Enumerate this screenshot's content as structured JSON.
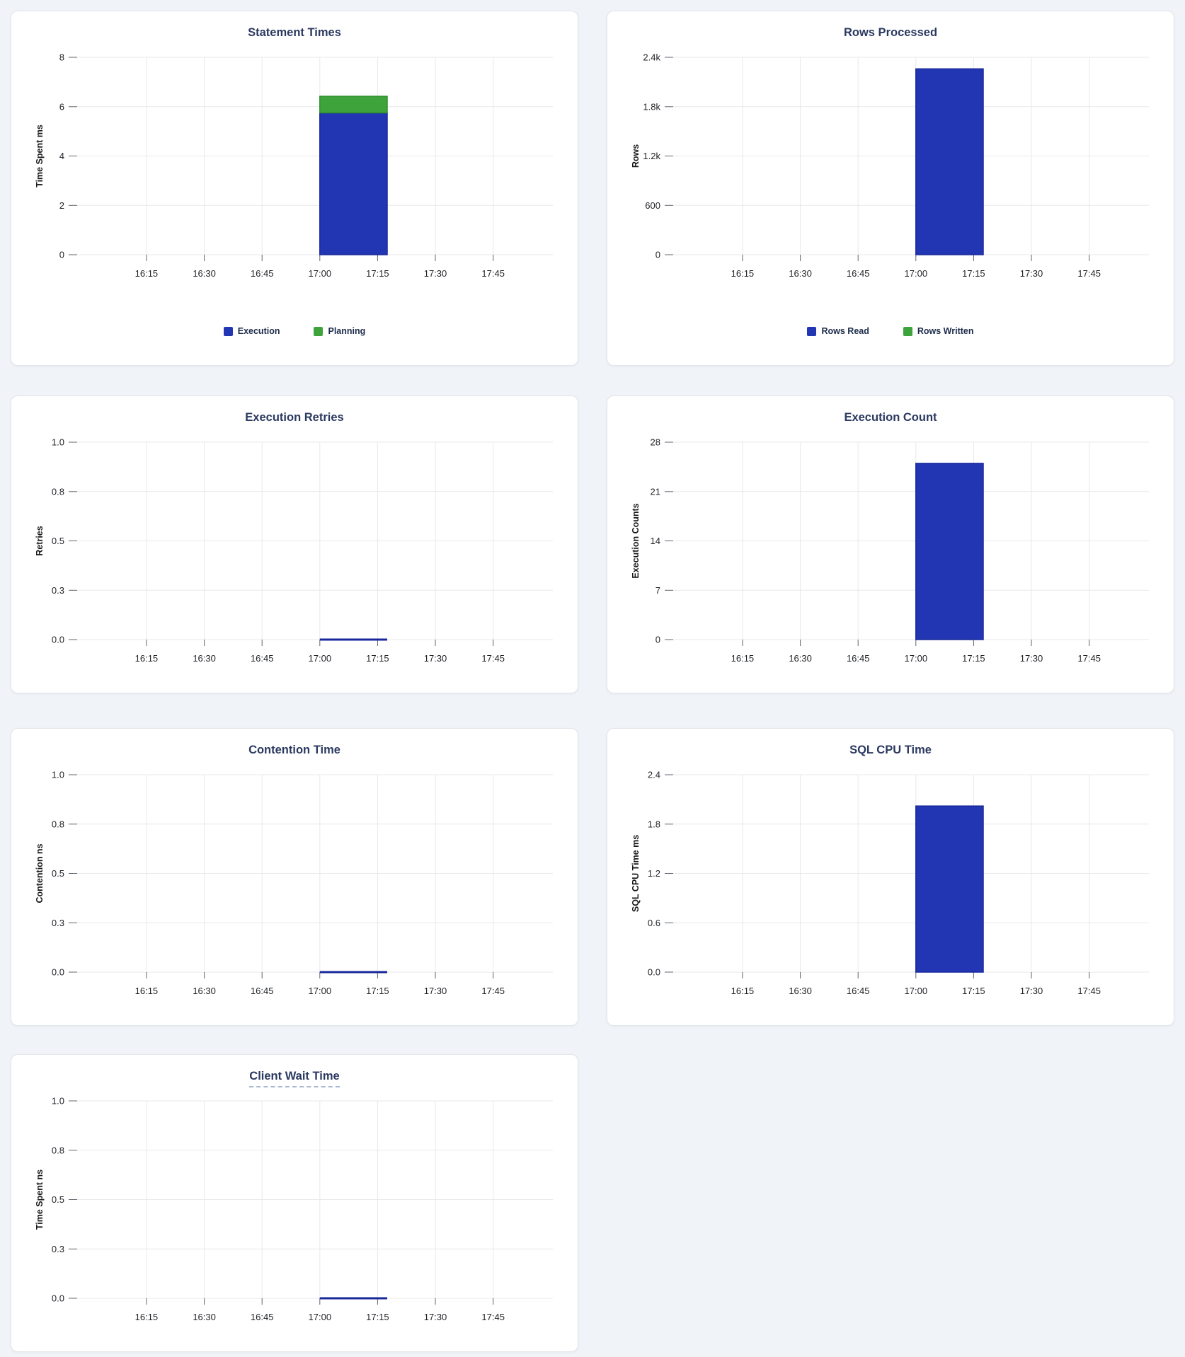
{
  "page": {
    "background": "#f0f4f8",
    "card_background": "#ffffff",
    "card_border": "#e2e5e9"
  },
  "palette": {
    "bar_blue": "#2236b4",
    "bar_blue_border": "#18289b",
    "bar_green": "#3fa33c",
    "bar_green_border": "#2e8f2c",
    "title_color": "#2b3960",
    "grid_color": "#e8e9ec",
    "tick_color": "#5f656d",
    "label_color": "#1f2126",
    "legend_text_color": "#1c2b4a"
  },
  "x_axis": {
    "tick_labels": [
      "16:15",
      "16:30",
      "16:45",
      "17:00",
      "17:15",
      "17:30",
      "17:45"
    ],
    "tick_minutes": [
      15,
      30,
      45,
      60,
      75,
      90,
      105
    ],
    "domain_minutes": [
      -3,
      120.5
    ]
  },
  "bar_window": {
    "start_minute": 60,
    "end_minute": 77.5,
    "from_label": "17:00",
    "to_label": "~17:18"
  },
  "chart_data": [
    {
      "id": "statement-times",
      "type": "bar",
      "title": "Statement Times",
      "ylabel": "Time Spent ms",
      "ylim": [
        0,
        8
      ],
      "yticks": [
        0,
        2,
        4,
        6,
        8
      ],
      "ytick_labels": [
        "0",
        "2",
        "4",
        "6",
        "8"
      ],
      "grid": true,
      "legend_position": "bottom-center",
      "series": [
        {
          "name": "Execution",
          "color": "bar_blue",
          "border": "bar_blue_border",
          "stack_from": 0,
          "stack_to": 5.75,
          "value": 5.75
        },
        {
          "name": "Planning",
          "color": "bar_green",
          "border": "bar_green_border",
          "stack_from": 5.75,
          "stack_to": 6.42,
          "value": 0.67
        }
      ],
      "legend": [
        "Execution",
        "Planning"
      ],
      "title_underlined": false
    },
    {
      "id": "rows-processed",
      "type": "bar",
      "title": "Rows Processed",
      "ylabel": "Rows",
      "ylim": [
        0,
        2400
      ],
      "yticks": [
        0,
        600,
        1200,
        1800,
        2400
      ],
      "ytick_labels": [
        "0",
        "600",
        "1.2k",
        "1.8k",
        "2.4k"
      ],
      "grid": true,
      "legend_position": "bottom-center",
      "series": [
        {
          "name": "Rows Read",
          "color": "bar_blue",
          "border": "bar_blue_border",
          "stack_from": 0,
          "stack_to": 2260,
          "value": 2260
        },
        {
          "name": "Rows Written",
          "color": "bar_green",
          "border": "bar_green_border",
          "stack_from": 2260,
          "stack_to": 2260,
          "value": 0
        }
      ],
      "legend": [
        "Rows Read",
        "Rows Written"
      ],
      "title_underlined": false
    },
    {
      "id": "execution-retries",
      "type": "line",
      "title": "Execution Retries",
      "ylabel": "Retries",
      "ylim": [
        0,
        1
      ],
      "yticks": [
        0,
        0.25,
        0.5,
        0.75,
        1
      ],
      "ytick_labels": [
        "0.0",
        "0.3",
        "0.5",
        "0.8",
        "1.0"
      ],
      "grid": true,
      "line_value": 0,
      "series": [
        {
          "name": "Retries",
          "color": "bar_blue_border",
          "value": 0
        }
      ],
      "title_underlined": false
    },
    {
      "id": "execution-count",
      "type": "bar",
      "title": "Execution Count",
      "ylabel": "Execution Counts",
      "ylim": [
        0,
        28
      ],
      "yticks": [
        0,
        7,
        14,
        21,
        28
      ],
      "ytick_labels": [
        "0",
        "7",
        "14",
        "21",
        "28"
      ],
      "grid": true,
      "series": [
        {
          "name": "Execution Counts",
          "color": "bar_blue",
          "border": "bar_blue_border",
          "stack_from": 0,
          "stack_to": 25,
          "value": 25
        }
      ],
      "title_underlined": false
    },
    {
      "id": "contention-time",
      "type": "line",
      "title": "Contention Time",
      "ylabel": "Contention ns",
      "ylim": [
        0,
        1
      ],
      "yticks": [
        0,
        0.25,
        0.5,
        0.75,
        1
      ],
      "ytick_labels": [
        "0.0",
        "0.3",
        "0.5",
        "0.8",
        "1.0"
      ],
      "grid": true,
      "line_value": 0,
      "series": [
        {
          "name": "Contention",
          "color": "bar_blue_border",
          "value": 0
        }
      ],
      "title_underlined": false
    },
    {
      "id": "sql-cpu-time",
      "type": "bar",
      "title": "SQL CPU Time",
      "ylabel": "SQL CPU Time ms",
      "ylim": [
        0,
        2.4
      ],
      "yticks": [
        0,
        0.6,
        1.2,
        1.8,
        2.4
      ],
      "ytick_labels": [
        "0.0",
        "0.6",
        "1.2",
        "1.8",
        "2.4"
      ],
      "grid": true,
      "series": [
        {
          "name": "SQL CPU Time",
          "color": "bar_blue",
          "border": "bar_blue_border",
          "stack_from": 0,
          "stack_to": 2.02,
          "value": 2.02
        }
      ],
      "title_underlined": false
    },
    {
      "id": "client-wait-time",
      "type": "line",
      "title": "Client Wait Time",
      "ylabel": "Time Spent ns",
      "ylim": [
        0,
        1
      ],
      "yticks": [
        0,
        0.25,
        0.5,
        0.75,
        1
      ],
      "ytick_labels": [
        "0.0",
        "0.3",
        "0.5",
        "0.8",
        "1.0"
      ],
      "grid": true,
      "line_value": 0,
      "series": [
        {
          "name": "Client Wait",
          "color": "bar_blue_border",
          "value": 0
        }
      ],
      "title_underlined": true
    }
  ]
}
